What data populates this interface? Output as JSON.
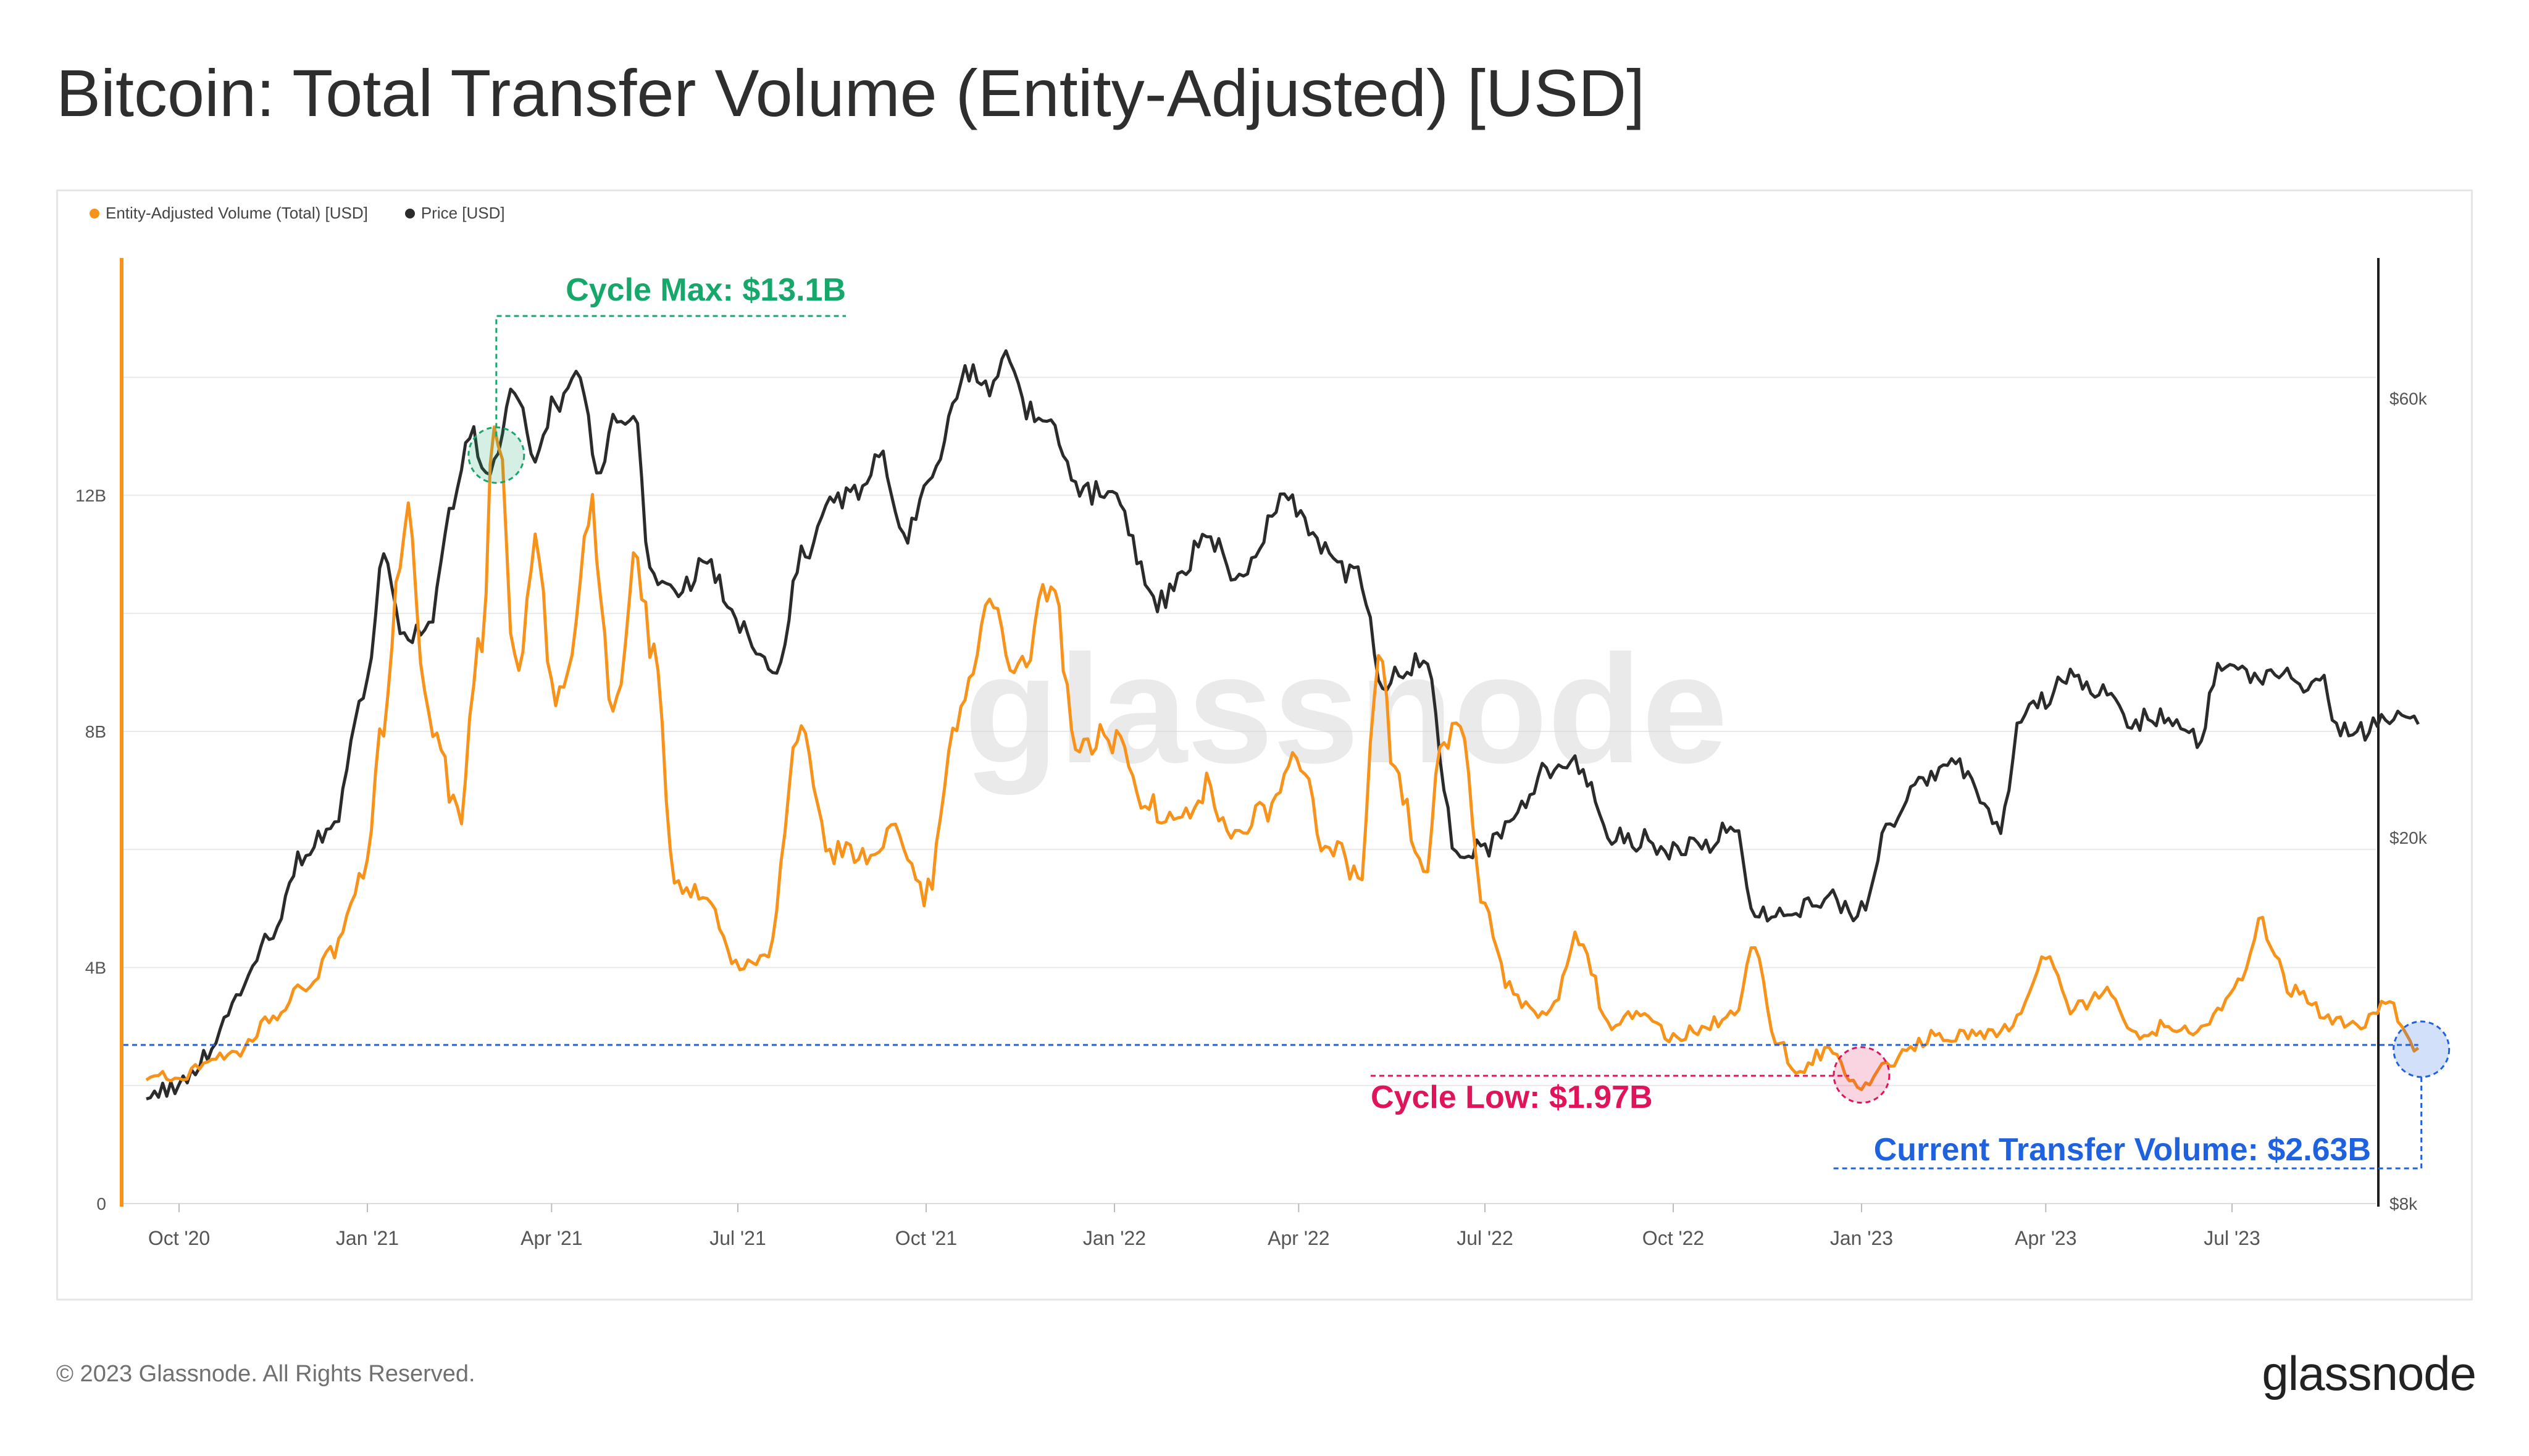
{
  "header": {
    "title": "Bitcoin: Total Transfer Volume (Entity-Adjusted) [USD]"
  },
  "legend": [
    {
      "label": "Entity-Adjusted Volume (Total) [USD]",
      "color": "#f7931a"
    },
    {
      "label": "Price [USD]",
      "color": "#2b2b2b"
    }
  ],
  "footer": {
    "copyright": "© 2023 Glassnode. All Rights Reserved.",
    "logo": "glassnode"
  },
  "watermark": "glassnode",
  "chart_data": {
    "type": "line",
    "x_tick_labels": [
      "Oct '20",
      "Jan '21",
      "Apr '21",
      "Jul '21",
      "Oct '21",
      "Jan '22",
      "Apr '22",
      "Jul '22",
      "Oct '22",
      "Jan '23",
      "Apr '23",
      "Jul '23"
    ],
    "x_tick_dates": [
      "2020-10-01",
      "2021-01-01",
      "2021-04-01",
      "2021-07-01",
      "2021-10-01",
      "2022-01-01",
      "2022-04-01",
      "2022-07-01",
      "2022-10-01",
      "2023-01-01",
      "2023-04-01",
      "2023-07-01"
    ],
    "y_left": {
      "tick_labels": [
        "0",
        "4B",
        "8B",
        "12B"
      ],
      "tick_values": [
        0,
        4000000000,
        8000000000,
        12000000000
      ],
      "range": [
        0,
        16000000000
      ]
    },
    "y_right": {
      "scale": "log",
      "tick_labels": [
        "$8k",
        "$20k",
        "$60k"
      ],
      "tick_values": [
        8000,
        20000,
        60000
      ],
      "range": [
        8000,
        85000
      ]
    },
    "series": [
      {
        "name": "Entity-Adjusted Volume (Total) [USD]",
        "axis": "left",
        "color": "#f7931a",
        "x": [
          "2020-09-15",
          "2020-10-01",
          "2020-10-15",
          "2020-11-01",
          "2020-11-15",
          "2020-12-01",
          "2020-12-15",
          "2021-01-01",
          "2021-01-08",
          "2021-01-20",
          "2021-02-01",
          "2021-02-15",
          "2021-02-25",
          "2021-03-05",
          "2021-03-15",
          "2021-03-25",
          "2021-04-01",
          "2021-04-10",
          "2021-04-20",
          "2021-05-01",
          "2021-05-12",
          "2021-05-20",
          "2021-06-01",
          "2021-06-15",
          "2021-07-01",
          "2021-07-15",
          "2021-08-01",
          "2021-08-15",
          "2021-09-01",
          "2021-09-15",
          "2021-10-01",
          "2021-10-15",
          "2021-11-01",
          "2021-11-15",
          "2021-12-01",
          "2021-12-15",
          "2022-01-01",
          "2022-01-15",
          "2022-02-01",
          "2022-02-15",
          "2022-03-01",
          "2022-03-15",
          "2022-04-01",
          "2022-04-15",
          "2022-05-01",
          "2022-05-10",
          "2022-05-20",
          "2022-06-01",
          "2022-06-10",
          "2022-06-18",
          "2022-07-01",
          "2022-07-15",
          "2022-08-01",
          "2022-08-15",
          "2022-09-01",
          "2022-09-15",
          "2022-10-01",
          "2022-10-15",
          "2022-11-01",
          "2022-11-09",
          "2022-11-20",
          "2022-12-01",
          "2022-12-15",
          "2023-01-01",
          "2023-01-15",
          "2023-02-01",
          "2023-02-15",
          "2023-03-01",
          "2023-03-15",
          "2023-04-01",
          "2023-04-15",
          "2023-05-01",
          "2023-05-15",
          "2023-06-01",
          "2023-06-15",
          "2023-07-01",
          "2023-07-15",
          "2023-08-01",
          "2023-08-15",
          "2023-09-01",
          "2023-09-15",
          "2023-09-30"
        ],
        "y": [
          2200000000.0,
          2100000000.0,
          2400000000.0,
          2600000000.0,
          3200000000.0,
          3600000000.0,
          4300000000.0,
          5800000000.0,
          8000000000.0,
          11500000000.0,
          8000000000.0,
          6500000000.0,
          9500000000.0,
          13100000000.0,
          9000000000.0,
          11500000000.0,
          8500000000.0,
          9000000000.0,
          11800000000.0,
          8500000000.0,
          10800000000.0,
          9500000000.0,
          5500000000.0,
          5200000000.0,
          4000000000.0,
          4200000000.0,
          8000000000.0,
          6000000000.0,
          5800000000.0,
          6200000000.0,
          5300000000.0,
          8000000000.0,
          10200000000.0,
          9000000000.0,
          10500000000.0,
          7500000000.0,
          8000000000.0,
          6800000000.0,
          6500000000.0,
          7000000000.0,
          6200000000.0,
          6500000000.0,
          7500000000.0,
          6000000000.0,
          5500000000.0,
          9000000000.0,
          7000000000.0,
          5500000000.0,
          7500000000.0,
          8300000000.0,
          5000000000.0,
          3500000000.0,
          3200000000.0,
          4500000000.0,
          3000000000.0,
          3200000000.0,
          2800000000.0,
          3000000000.0,
          3200000000.0,
          4500000000.0,
          2800000000.0,
          2200000000.0,
          2600000000.0,
          1970000000.0,
          2400000000.0,
          2800000000.0,
          2800000000.0,
          2900000000.0,
          3000000000.0,
          4200000000.0,
          3300000000.0,
          3600000000.0,
          2800000000.0,
          3000000000.0,
          2900000000.0,
          3500000000.0,
          4700000000.0,
          3600000000.0,
          3200000000.0,
          3000000000.0,
          3400000000.0,
          2630000000.0
        ]
      },
      {
        "name": "Price [USD]",
        "axis": "right",
        "color": "#2b2b2b",
        "x": [
          "2020-09-15",
          "2020-10-01",
          "2020-10-15",
          "2020-11-01",
          "2020-11-15",
          "2020-12-01",
          "2020-12-15",
          "2021-01-01",
          "2021-01-08",
          "2021-01-20",
          "2021-02-01",
          "2021-02-10",
          "2021-02-20",
          "2021-03-01",
          "2021-03-13",
          "2021-03-25",
          "2021-04-01",
          "2021-04-14",
          "2021-04-25",
          "2021-05-01",
          "2021-05-12",
          "2021-05-20",
          "2021-06-01",
          "2021-06-15",
          "2021-07-01",
          "2021-07-20",
          "2021-08-01",
          "2021-08-15",
          "2021-09-01",
          "2021-09-07",
          "2021-09-21",
          "2021-10-01",
          "2021-10-20",
          "2021-11-01",
          "2021-11-10",
          "2021-11-20",
          "2021-12-01",
          "2021-12-15",
          "2022-01-01",
          "2022-01-22",
          "2022-02-01",
          "2022-02-15",
          "2022-03-01",
          "2022-03-28",
          "2022-04-10",
          "2022-04-25",
          "2022-05-01",
          "2022-05-12",
          "2022-05-20",
          "2022-06-01",
          "2022-06-18",
          "2022-07-01",
          "2022-07-15",
          "2022-08-01",
          "2022-08-15",
          "2022-09-01",
          "2022-09-15",
          "2022-10-01",
          "2022-10-15",
          "2022-11-01",
          "2022-11-09",
          "2022-11-20",
          "2022-12-01",
          "2022-12-15",
          "2023-01-01",
          "2023-01-15",
          "2023-02-01",
          "2023-02-15",
          "2023-03-10",
          "2023-03-20",
          "2023-04-01",
          "2023-04-15",
          "2023-05-01",
          "2023-05-15",
          "2023-06-01",
          "2023-06-15",
          "2023-06-25",
          "2023-07-01",
          "2023-07-15",
          "2023-08-01",
          "2023-08-15",
          "2023-08-20",
          "2023-09-01",
          "2023-09-15",
          "2023-09-30"
        ],
        "y": [
          10500,
          10700,
          11500,
          13700,
          15900,
          19000,
          21000,
          29000,
          40000,
          33000,
          34000,
          45000,
          56000,
          49000,
          60000,
          52000,
          58500,
          63500,
          50000,
          56000,
          57000,
          38000,
          37000,
          40000,
          34000,
          30000,
          40000,
          46000,
          48000,
          52000,
          43000,
          48000,
          64000,
          62000,
          67000,
          58000,
          56000,
          48000,
          47000,
          36000,
          38000,
          43000,
          38000,
          47000,
          42000,
          39000,
          38500,
          29000,
          30000,
          31000,
          19000,
          19500,
          21000,
          23500,
          24000,
          20000,
          19800,
          19300,
          19500,
          20500,
          16500,
          16500,
          17000,
          17000,
          16600,
          21000,
          23000,
          24500,
          20500,
          27000,
          28500,
          30000,
          28500,
          27000,
          27000,
          25500,
          30500,
          30500,
          30200,
          29500,
          29200,
          26000,
          25800,
          26500,
          27000
        ]
      }
    ],
    "annotations": [
      {
        "label": "Cycle Max: $13.1B",
        "date": "2021-03-05",
        "value": 13100000000,
        "color": "#16a76b"
      },
      {
        "label": "Cycle Low: $1.97B",
        "date": "2023-01-01",
        "value": 1970000000,
        "color": "#e0145a"
      },
      {
        "label": "Current Transfer Volume: $2.63B",
        "date": "2023-09-30",
        "value": 2630000000,
        "color": "#1f62e0"
      }
    ],
    "grid": true,
    "legend_position": "top-left",
    "colors": {
      "volume": "#f7931a",
      "price": "#2b2b2b",
      "cycle_max": "#16a76b",
      "cycle_low": "#e0145a",
      "current": "#1f62e0",
      "grid": "#e8e8e8"
    }
  }
}
